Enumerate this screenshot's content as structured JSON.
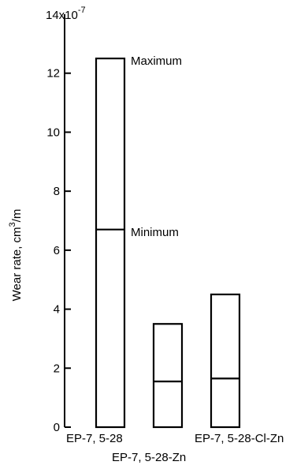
{
  "chart_data": {
    "type": "bar",
    "ylabel_text": "Wear rate, cm",
    "ylabel_sup": "3",
    "ylabel_unit": "/m",
    "y_scale_label_base": "14x10",
    "y_scale_label_exp": "-7",
    "ylim": [
      0,
      14
    ],
    "yticks": [
      {
        "value": 0,
        "label": "0"
      },
      {
        "value": 2,
        "label": "2"
      },
      {
        "value": 4,
        "label": "4"
      },
      {
        "value": 6,
        "label": "6"
      },
      {
        "value": 8,
        "label": "8"
      },
      {
        "value": 10,
        "label": "10"
      },
      {
        "value": 12,
        "label": "12"
      }
    ],
    "categories": [
      "EP-7, 5-28",
      "EP-7, 5-28-Zn",
      "EP-7, 5-28-Cl-Zn"
    ],
    "series": [
      {
        "name": "Maximum",
        "values": [
          12.5,
          3.5,
          4.5
        ]
      },
      {
        "name": "Minimum",
        "values": [
          6.7,
          1.55,
          1.65
        ]
      }
    ],
    "annotations": {
      "maximum": "Maximum",
      "minimum": "Minimum"
    },
    "grid": false
  }
}
